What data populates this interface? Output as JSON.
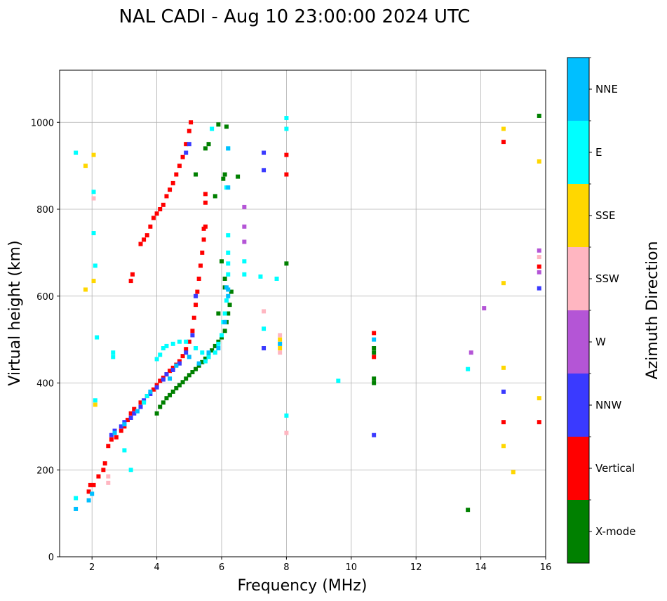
{
  "chart_data": {
    "type": "scatter",
    "title": "NAL CADI - Aug 10 23:00:00 2024 UTC",
    "xlabel": "Frequency (MHz)",
    "ylabel": "Virtual height (km)",
    "xlim": [
      1,
      16
    ],
    "ylim": [
      0,
      1120
    ],
    "xticks": [
      "2",
      "4",
      "6",
      "8",
      "10",
      "12",
      "14",
      "16"
    ],
    "yticks": [
      "0",
      "200",
      "400",
      "600",
      "800",
      "1000"
    ],
    "grid": true,
    "colorbar": {
      "title": "Azimuth Direction",
      "categories": [
        {
          "label": "X-mode",
          "color": "#008000"
        },
        {
          "label": "Vertical",
          "color": "#ff0000"
        },
        {
          "label": "NNW",
          "color": "#3a3aff"
        },
        {
          "label": "W",
          "color": "#b455d6"
        },
        {
          "label": "SSW",
          "color": "#ffb6c1"
        },
        {
          "label": "SSE",
          "color": "#ffd700"
        },
        {
          "label": "E",
          "color": "#00ffff"
        },
        {
          "label": "NNE",
          "color": "#00bfff"
        }
      ]
    },
    "series": [
      {
        "name": "X-mode",
        "points": [
          [
            4.0,
            330
          ],
          [
            4.1,
            345
          ],
          [
            4.2,
            355
          ],
          [
            4.3,
            365
          ],
          [
            4.4,
            372
          ],
          [
            4.5,
            380
          ],
          [
            4.6,
            388
          ],
          [
            4.7,
            395
          ],
          [
            4.8,
            402
          ],
          [
            4.9,
            410
          ],
          [
            5.0,
            418
          ],
          [
            5.1,
            425
          ],
          [
            5.2,
            432
          ],
          [
            5.3,
            440
          ],
          [
            5.4,
            448
          ],
          [
            5.5,
            456
          ],
          [
            5.6,
            465
          ],
          [
            5.7,
            475
          ],
          [
            5.8,
            485
          ],
          [
            5.9,
            495
          ],
          [
            6.0,
            505
          ],
          [
            6.1,
            520
          ],
          [
            6.15,
            540
          ],
          [
            6.2,
            560
          ],
          [
            6.25,
            580
          ],
          [
            6.3,
            610
          ],
          [
            6.1,
            640
          ],
          [
            6.0,
            680
          ],
          [
            6.1,
            620
          ],
          [
            5.9,
            560
          ],
          [
            5.8,
            830
          ],
          [
            6.05,
            870
          ],
          [
            6.1,
            880
          ],
          [
            5.2,
            880
          ],
          [
            5.5,
            940
          ],
          [
            5.6,
            950
          ],
          [
            5.9,
            995
          ],
          [
            6.15,
            990
          ],
          [
            6.5,
            875
          ],
          [
            8.0,
            675
          ],
          [
            10.7,
            400
          ],
          [
            10.7,
            410
          ],
          [
            10.7,
            470
          ],
          [
            10.7,
            480
          ],
          [
            13.6,
            108
          ],
          [
            15.8,
            1015
          ]
        ]
      },
      {
        "name": "Vertical",
        "points": [
          [
            1.9,
            150
          ],
          [
            1.95,
            165
          ],
          [
            2.05,
            165
          ],
          [
            2.2,
            185
          ],
          [
            2.35,
            200
          ],
          [
            2.4,
            215
          ],
          [
            2.5,
            255
          ],
          [
            2.6,
            270
          ],
          [
            2.75,
            275
          ],
          [
            2.9,
            290
          ],
          [
            3.0,
            300
          ],
          [
            3.1,
            315
          ],
          [
            3.2,
            330
          ],
          [
            3.3,
            340
          ],
          [
            3.5,
            355
          ],
          [
            3.7,
            370
          ],
          [
            3.9,
            385
          ],
          [
            4.0,
            395
          ],
          [
            4.1,
            405
          ],
          [
            4.2,
            412
          ],
          [
            4.3,
            420
          ],
          [
            4.4,
            428
          ],
          [
            4.5,
            435
          ],
          [
            4.6,
            442
          ],
          [
            4.7,
            450
          ],
          [
            4.8,
            462
          ],
          [
            4.9,
            478
          ],
          [
            5.0,
            495
          ],
          [
            5.1,
            520
          ],
          [
            5.15,
            550
          ],
          [
            5.2,
            580
          ],
          [
            5.25,
            610
          ],
          [
            5.3,
            640
          ],
          [
            5.35,
            670
          ],
          [
            5.4,
            700
          ],
          [
            5.45,
            730
          ],
          [
            5.5,
            760
          ],
          [
            3.5,
            720
          ],
          [
            3.6,
            730
          ],
          [
            3.7,
            740
          ],
          [
            3.8,
            760
          ],
          [
            3.9,
            780
          ],
          [
            4.0,
            790
          ],
          [
            4.1,
            800
          ],
          [
            4.2,
            810
          ],
          [
            4.3,
            830
          ],
          [
            4.4,
            845
          ],
          [
            4.5,
            860
          ],
          [
            4.6,
            880
          ],
          [
            4.7,
            900
          ],
          [
            4.8,
            920
          ],
          [
            4.9,
            950
          ],
          [
            5.0,
            980
          ],
          [
            5.05,
            1000
          ],
          [
            3.2,
            635
          ],
          [
            3.25,
            650
          ],
          [
            5.45,
            755
          ],
          [
            5.5,
            815
          ],
          [
            5.5,
            835
          ],
          [
            8.0,
            880
          ],
          [
            8.0,
            925
          ],
          [
            10.7,
            460
          ],
          [
            10.7,
            515
          ],
          [
            14.7,
            310
          ],
          [
            14.7,
            955
          ],
          [
            15.8,
            310
          ],
          [
            15.8,
            668
          ]
        ]
      },
      {
        "name": "NNW",
        "points": [
          [
            2.9,
            300
          ],
          [
            3.0,
            310
          ],
          [
            3.2,
            320
          ],
          [
            3.3,
            330
          ],
          [
            3.5,
            345
          ],
          [
            3.6,
            360
          ],
          [
            3.8,
            375
          ],
          [
            4.0,
            390
          ],
          [
            4.2,
            408
          ],
          [
            4.5,
            430
          ],
          [
            4.7,
            445
          ],
          [
            4.9,
            470
          ],
          [
            5.1,
            510
          ],
          [
            5.2,
            600
          ],
          [
            4.9,
            930
          ],
          [
            5.0,
            950
          ],
          [
            4.3,
            420
          ],
          [
            2.6,
            280
          ],
          [
            2.7,
            290
          ],
          [
            7.3,
            890
          ],
          [
            7.3,
            930
          ],
          [
            7.3,
            480
          ],
          [
            10.7,
            280
          ],
          [
            14.7,
            380
          ],
          [
            15.8,
            618
          ]
        ]
      },
      {
        "name": "W",
        "points": [
          [
            6.7,
            805
          ],
          [
            6.7,
            760
          ],
          [
            6.7,
            725
          ],
          [
            14.1,
            572
          ],
          [
            13.7,
            470
          ],
          [
            15.8,
            705
          ],
          [
            15.8,
            655
          ]
        ]
      },
      {
        "name": "SSW",
        "points": [
          [
            2.05,
            825
          ],
          [
            7.3,
            565
          ],
          [
            7.8,
            470
          ],
          [
            7.8,
            490
          ],
          [
            7.8,
            510
          ],
          [
            8.0,
            285
          ],
          [
            2.5,
            170
          ],
          [
            2.5,
            185
          ],
          [
            15.8,
            690
          ]
        ]
      },
      {
        "name": "SSE",
        "points": [
          [
            2.05,
            925
          ],
          [
            1.8,
            900
          ],
          [
            2.05,
            635
          ],
          [
            1.8,
            615
          ],
          [
            2.1,
            350
          ],
          [
            14.7,
            985
          ],
          [
            14.7,
            630
          ],
          [
            14.7,
            435
          ],
          [
            14.7,
            255
          ],
          [
            15.0,
            195
          ],
          [
            15.8,
            910
          ],
          [
            15.8,
            365
          ],
          [
            7.8,
            480
          ],
          [
            7.8,
            500
          ]
        ]
      },
      {
        "name": "E",
        "points": [
          [
            1.5,
            930
          ],
          [
            1.5,
            135
          ],
          [
            2.05,
            840
          ],
          [
            2.05,
            745
          ],
          [
            2.1,
            670
          ],
          [
            2.1,
            360
          ],
          [
            2.15,
            505
          ],
          [
            2.65,
            470
          ],
          [
            2.65,
            460
          ],
          [
            3.0,
            245
          ],
          [
            3.2,
            200
          ],
          [
            3.6,
            355
          ],
          [
            3.7,
            370
          ],
          [
            4.0,
            455
          ],
          [
            4.1,
            465
          ],
          [
            4.2,
            480
          ],
          [
            4.3,
            485
          ],
          [
            4.5,
            490
          ],
          [
            4.7,
            495
          ],
          [
            4.9,
            495
          ],
          [
            5.2,
            480
          ],
          [
            5.4,
            470
          ],
          [
            5.5,
            450
          ],
          [
            5.6,
            460
          ],
          [
            5.8,
            470
          ],
          [
            5.9,
            490
          ],
          [
            6.0,
            510
          ],
          [
            6.05,
            540
          ],
          [
            6.1,
            560
          ],
          [
            6.15,
            590
          ],
          [
            6.2,
            650
          ],
          [
            6.2,
            675
          ],
          [
            6.2,
            700
          ],
          [
            6.2,
            740
          ],
          [
            6.15,
            850
          ],
          [
            6.2,
            940
          ],
          [
            5.7,
            985
          ],
          [
            6.7,
            650
          ],
          [
            6.7,
            680
          ],
          [
            7.2,
            645
          ],
          [
            7.3,
            525
          ],
          [
            7.7,
            640
          ],
          [
            8.0,
            325
          ],
          [
            8.0,
            985
          ],
          [
            8.0,
            1010
          ],
          [
            9.6,
            405
          ],
          [
            13.6,
            432
          ]
        ]
      },
      {
        "name": "NNE",
        "points": [
          [
            1.5,
            110
          ],
          [
            1.9,
            130
          ],
          [
            2.0,
            145
          ],
          [
            2.7,
            285
          ],
          [
            3.0,
            305
          ],
          [
            3.4,
            335
          ],
          [
            3.8,
            380
          ],
          [
            4.4,
            410
          ],
          [
            4.6,
            440
          ],
          [
            5.0,
            460
          ],
          [
            5.3,
            445
          ],
          [
            5.6,
            470
          ],
          [
            5.9,
            480
          ],
          [
            6.1,
            540
          ],
          [
            6.2,
            600
          ],
          [
            6.2,
            615
          ],
          [
            6.15,
            620
          ],
          [
            6.2,
            940
          ],
          [
            6.2,
            850
          ],
          [
            7.8,
            490
          ],
          [
            10.7,
            500
          ]
        ]
      }
    ]
  }
}
